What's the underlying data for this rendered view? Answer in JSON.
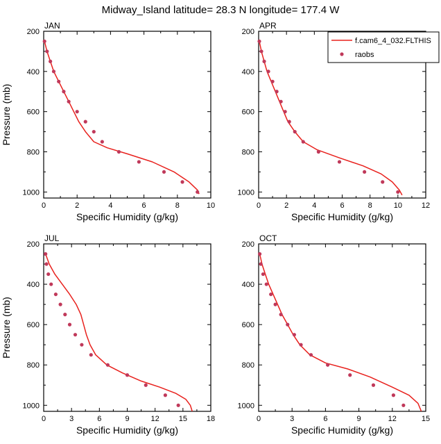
{
  "title": "Midway_Island  latitude= 28.3 N longitude= 177.4 W",
  "colors": {
    "model_line": "#e8201c",
    "raobs_marker": "#c0395a",
    "axis": "#000000"
  },
  "legend": {
    "placement": "top-right",
    "entries": [
      {
        "label": "f.cam6_4_032.FLTHIS",
        "kind": "line"
      },
      {
        "label": "raobs",
        "kind": "marker"
      }
    ]
  },
  "chart_data": [
    {
      "type": "line",
      "panel": "JAN",
      "xlabel": "Specific Humidity (g/kg)",
      "ylabel": "Pressure (mb)",
      "xlim": [
        0,
        10
      ],
      "ylim": [
        200,
        1030
      ],
      "y_reversed": true,
      "xticks": [
        0,
        2,
        4,
        6,
        8,
        10
      ],
      "yticks": [
        200,
        400,
        600,
        800,
        1000
      ],
      "series": [
        {
          "name": "f.cam6_4_032.FLTHIS",
          "style": "line",
          "points": [
            [
              0.05,
              250
            ],
            [
              0.2,
              300
            ],
            [
              0.4,
              350
            ],
            [
              0.6,
              400
            ],
            [
              0.9,
              450
            ],
            [
              1.2,
              500
            ],
            [
              1.5,
              550
            ],
            [
              1.8,
              600
            ],
            [
              2.1,
              650
            ],
            [
              2.5,
              700
            ],
            [
              3.0,
              750
            ],
            [
              3.8,
              780
            ],
            [
              5.0,
              810
            ],
            [
              6.5,
              850
            ],
            [
              7.8,
              900
            ],
            [
              8.7,
              950
            ],
            [
              9.2,
              990
            ],
            [
              9.3,
              1010
            ]
          ]
        },
        {
          "name": "raobs",
          "style": "marker",
          "points": [
            [
              0.05,
              250
            ],
            [
              0.2,
              300
            ],
            [
              0.4,
              350
            ],
            [
              0.6,
              400
            ],
            [
              0.9,
              450
            ],
            [
              1.2,
              500
            ],
            [
              1.5,
              550
            ],
            [
              2.0,
              600
            ],
            [
              2.5,
              650
            ],
            [
              3.0,
              700
            ],
            [
              3.5,
              750
            ],
            [
              4.5,
              800
            ],
            [
              5.7,
              850
            ],
            [
              7.2,
              900
            ],
            [
              8.3,
              950
            ],
            [
              9.2,
              1000
            ]
          ]
        }
      ]
    },
    {
      "type": "line",
      "panel": "APR",
      "xlabel": "Specific Humidity (g/kg)",
      "ylabel": "",
      "xlim": [
        0,
        12
      ],
      "ylim": [
        200,
        1030
      ],
      "y_reversed": true,
      "xticks": [
        0,
        2,
        4,
        6,
        8,
        10,
        12
      ],
      "yticks": [
        200,
        400,
        600,
        800,
        1000
      ],
      "series": [
        {
          "name": "f.cam6_4_032.FLTHIS",
          "style": "line",
          "points": [
            [
              0.05,
              250
            ],
            [
              0.2,
              300
            ],
            [
              0.4,
              350
            ],
            [
              0.6,
              400
            ],
            [
              0.9,
              450
            ],
            [
              1.2,
              500
            ],
            [
              1.5,
              550
            ],
            [
              1.8,
              600
            ],
            [
              2.1,
              650
            ],
            [
              2.6,
              700
            ],
            [
              3.2,
              750
            ],
            [
              4.2,
              790
            ],
            [
              5.8,
              830
            ],
            [
              7.5,
              870
            ],
            [
              8.8,
              910
            ],
            [
              9.6,
              950
            ],
            [
              10.1,
              990
            ],
            [
              10.3,
              1015
            ]
          ]
        },
        {
          "name": "raobs",
          "style": "marker",
          "points": [
            [
              0.05,
              250
            ],
            [
              0.2,
              300
            ],
            [
              0.4,
              350
            ],
            [
              0.7,
              400
            ],
            [
              1.0,
              450
            ],
            [
              1.3,
              500
            ],
            [
              1.6,
              550
            ],
            [
              1.9,
              600
            ],
            [
              2.2,
              650
            ],
            [
              2.6,
              700
            ],
            [
              3.2,
              750
            ],
            [
              4.3,
              800
            ],
            [
              5.8,
              850
            ],
            [
              7.6,
              900
            ],
            [
              8.9,
              950
            ],
            [
              10.0,
              1000
            ]
          ]
        }
      ]
    },
    {
      "type": "line",
      "panel": "JUL",
      "xlabel": "Specific Humidity (g/kg)",
      "ylabel": "Pressure (mb)",
      "xlim": [
        0,
        18
      ],
      "ylim": [
        200,
        1030
      ],
      "y_reversed": true,
      "xticks": [
        0,
        3,
        6,
        9,
        12,
        15,
        18
      ],
      "yticks": [
        200,
        400,
        600,
        800,
        1000
      ],
      "series": [
        {
          "name": "f.cam6_4_032.FLTHIS",
          "style": "line",
          "points": [
            [
              0.2,
              250
            ],
            [
              0.6,
              300
            ],
            [
              1.2,
              350
            ],
            [
              2.0,
              400
            ],
            [
              2.8,
              450
            ],
            [
              3.5,
              500
            ],
            [
              4.0,
              550
            ],
            [
              4.3,
              600
            ],
            [
              4.6,
              650
            ],
            [
              5.0,
              700
            ],
            [
              5.6,
              750
            ],
            [
              6.8,
              800
            ],
            [
              8.5,
              840
            ],
            [
              10.5,
              880
            ],
            [
              12.5,
              910
            ],
            [
              14.2,
              940
            ],
            [
              15.3,
              970
            ],
            [
              15.8,
              1000
            ],
            [
              16.0,
              1030
            ]
          ]
        },
        {
          "name": "raobs",
          "style": "marker",
          "points": [
            [
              0.2,
              250
            ],
            [
              0.3,
              300
            ],
            [
              0.5,
              350
            ],
            [
              0.8,
              400
            ],
            [
              1.3,
              450
            ],
            [
              1.8,
              500
            ],
            [
              2.3,
              550
            ],
            [
              2.8,
              600
            ],
            [
              3.4,
              650
            ],
            [
              4.1,
              700
            ],
            [
              5.1,
              750
            ],
            [
              6.9,
              800
            ],
            [
              9.0,
              850
            ],
            [
              11.0,
              900
            ],
            [
              13.1,
              950
            ],
            [
              14.5,
              1000
            ]
          ]
        }
      ]
    },
    {
      "type": "line",
      "panel": "OCT",
      "xlabel": "Specific Humidity (g/kg)",
      "ylabel": "",
      "xlim": [
        0,
        15
      ],
      "ylim": [
        200,
        1030
      ],
      "y_reversed": true,
      "xticks": [
        0,
        3,
        6,
        9,
        12,
        15
      ],
      "yticks": [
        200,
        400,
        600,
        800,
        1000
      ],
      "series": [
        {
          "name": "f.cam6_4_032.FLTHIS",
          "style": "line",
          "points": [
            [
              0.1,
              250
            ],
            [
              0.3,
              300
            ],
            [
              0.6,
              350
            ],
            [
              0.9,
              400
            ],
            [
              1.3,
              450
            ],
            [
              1.7,
              500
            ],
            [
              2.1,
              550
            ],
            [
              2.6,
              600
            ],
            [
              3.1,
              650
            ],
            [
              3.7,
              700
            ],
            [
              4.6,
              750
            ],
            [
              6.0,
              790
            ],
            [
              8.0,
              820
            ],
            [
              10.0,
              860
            ],
            [
              12.0,
              910
            ],
            [
              13.5,
              950
            ],
            [
              14.3,
              990
            ],
            [
              14.6,
              1030
            ]
          ]
        },
        {
          "name": "raobs",
          "style": "marker",
          "points": [
            [
              0.1,
              250
            ],
            [
              0.2,
              300
            ],
            [
              0.4,
              350
            ],
            [
              0.7,
              400
            ],
            [
              1.1,
              450
            ],
            [
              1.5,
              500
            ],
            [
              2.0,
              550
            ],
            [
              2.6,
              600
            ],
            [
              3.2,
              650
            ],
            [
              3.8,
              700
            ],
            [
              4.7,
              750
            ],
            [
              6.2,
              800
            ],
            [
              8.2,
              850
            ],
            [
              10.3,
              900
            ],
            [
              12.1,
              950
            ],
            [
              13.0,
              1000
            ]
          ]
        }
      ]
    }
  ]
}
